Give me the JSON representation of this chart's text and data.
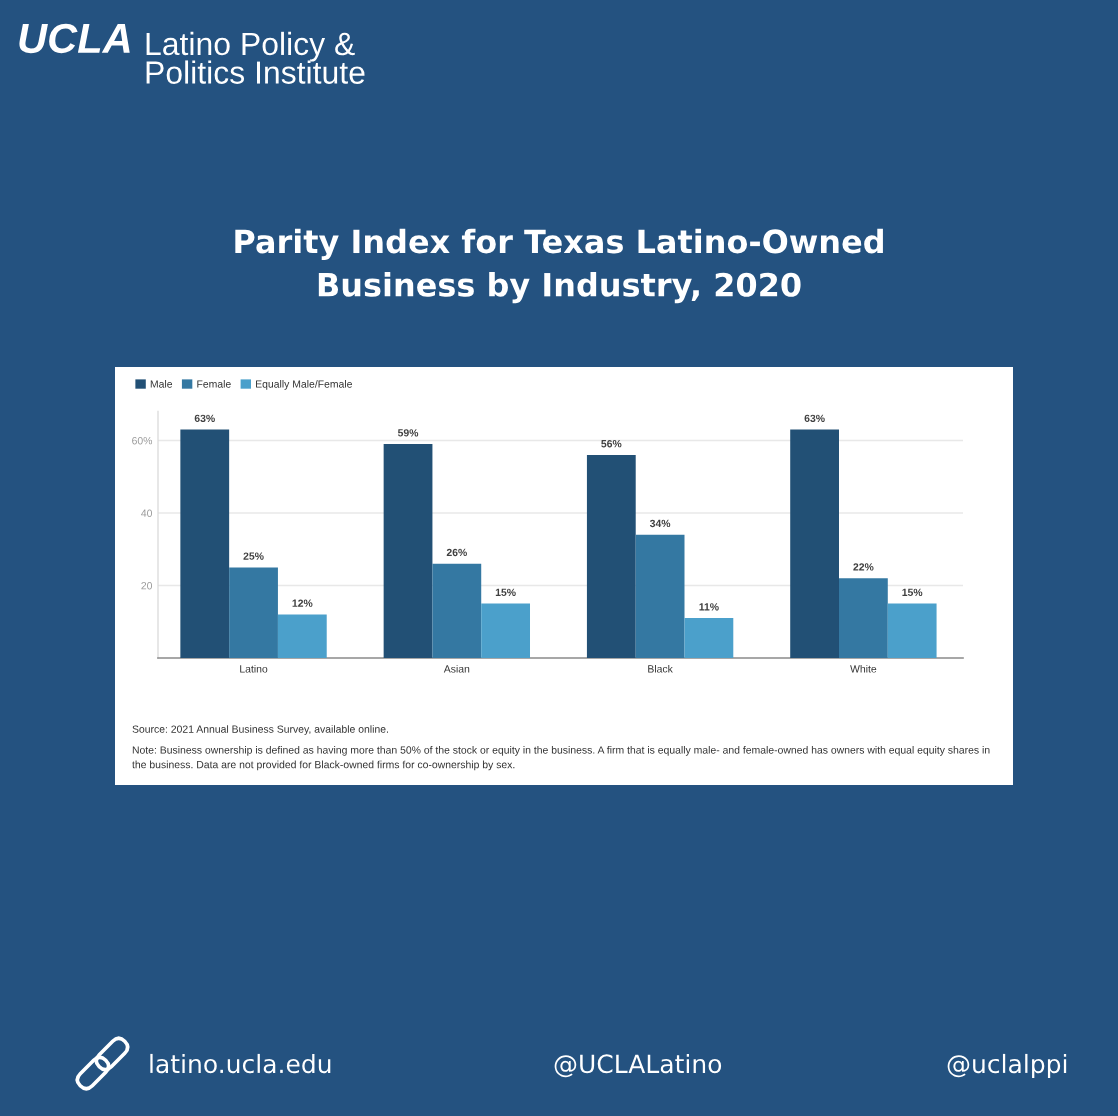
{
  "chart_data": {
    "type": "bar",
    "title": "Parity Index for Texas Latino-Owned Business by Industry, 2020",
    "categories": [
      "Latino",
      "Asian",
      "Black",
      "White"
    ],
    "series": [
      {
        "name": "Male",
        "color": "#225075",
        "values": [
          63,
          59,
          56,
          63
        ],
        "value_labels": [
          "63%",
          "59%",
          "56%",
          "63%"
        ]
      },
      {
        "name": "Female",
        "color": "#3478a2",
        "values": [
          25,
          26,
          34,
          22
        ],
        "value_labels": [
          "25%",
          "26%",
          "34%",
          "22%"
        ]
      },
      {
        "name": "Equally Male/Female",
        "color": "#4ba0cb",
        "values": [
          12,
          15,
          11,
          15
        ],
        "value_labels": [
          "12%",
          "15%",
          "11%",
          "15%"
        ]
      }
    ],
    "ylim": [
      0,
      68
    ],
    "yticks": [
      20,
      40,
      {
        "value": 60,
        "label": "60%"
      }
    ],
    "grid": "y",
    "legend": "top left",
    "annotations": [
      "UCLA",
      "Latino Policy & Politics Institute",
      "Source: 2021 Annual Business Survey, available online.",
      "Note: Business ownership is defined as having more than 50% of the stock or equity in the business. A firm that is equally male- and female-owned has owners with equal equity shares in the business. Data are not provided for Black-owned firms for co-ownership by sex.",
      "latino.ucla.edu",
      "@UCLALatino",
      "@uclalppi"
    ]
  }
}
